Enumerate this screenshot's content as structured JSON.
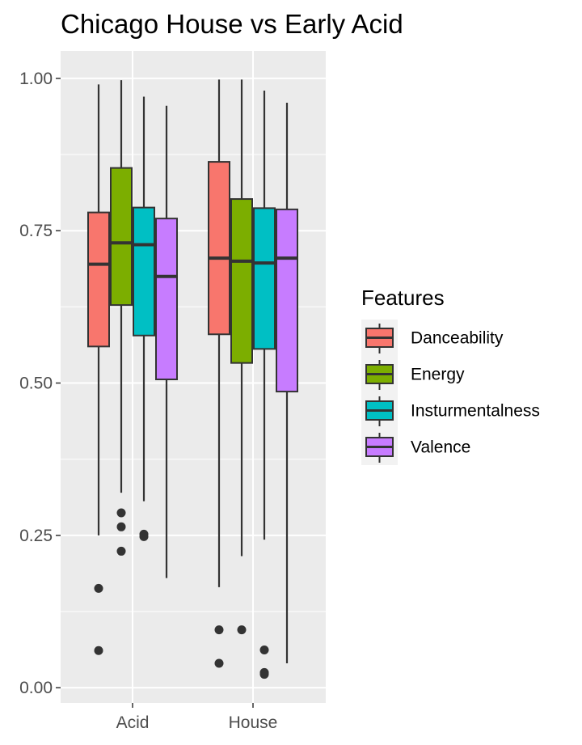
{
  "chart_data": {
    "type": "box",
    "title": "Chicago House vs Early Acid",
    "xlabel": "",
    "ylabel": "",
    "categories": [
      "Acid",
      "House"
    ],
    "ylim": [
      -0.025,
      1.045
    ],
    "y_ticks": [
      0.0,
      0.25,
      0.5,
      0.75,
      1.0
    ],
    "y_tick_labels": [
      "0.00",
      "0.25",
      "0.50",
      "0.75",
      "1.00"
    ],
    "grid": true,
    "legend": {
      "title": "Features",
      "position": "right"
    },
    "series": [
      {
        "name": "Danceability",
        "color": "#F8766D",
        "boxes": [
          {
            "category": "Acid",
            "min": 0.25,
            "q1": 0.56,
            "median": 0.695,
            "q3": 0.78,
            "max": 0.99,
            "outliers": [
              0.163,
              0.061
            ]
          },
          {
            "category": "House",
            "min": 0.165,
            "q1": 0.58,
            "median": 0.705,
            "q3": 0.863,
            "max": 0.998,
            "outliers": [
              0.095,
              0.04
            ]
          }
        ]
      },
      {
        "name": "Energy",
        "color": "#7CAE00",
        "boxes": [
          {
            "category": "Acid",
            "min": 0.32,
            "q1": 0.628,
            "median": 0.73,
            "q3": 0.853,
            "max": 0.997,
            "outliers": [
              0.287,
              0.264,
              0.224
            ]
          },
          {
            "category": "House",
            "min": 0.216,
            "q1": 0.533,
            "median": 0.7,
            "q3": 0.802,
            "max": 0.998,
            "outliers": [
              0.095
            ]
          }
        ]
      },
      {
        "name": "Insturmentalness",
        "color": "#00BFC4",
        "boxes": [
          {
            "category": "Acid",
            "min": 0.306,
            "q1": 0.578,
            "median": 0.727,
            "q3": 0.788,
            "max": 0.97,
            "outliers": [
              0.252,
              0.248
            ]
          },
          {
            "category": "House",
            "min": 0.243,
            "q1": 0.556,
            "median": 0.697,
            "q3": 0.787,
            "max": 0.98,
            "outliers": [
              0.062,
              0.025,
              0.022
            ]
          }
        ]
      },
      {
        "name": "Valence",
        "color": "#C77CFF",
        "boxes": [
          {
            "category": "Acid",
            "min": 0.18,
            "q1": 0.506,
            "median": 0.675,
            "q3": 0.77,
            "max": 0.955,
            "outliers": []
          },
          {
            "category": "House",
            "min": 0.04,
            "q1": 0.486,
            "median": 0.705,
            "q3": 0.785,
            "max": 0.96,
            "outliers": []
          }
        ]
      }
    ]
  }
}
